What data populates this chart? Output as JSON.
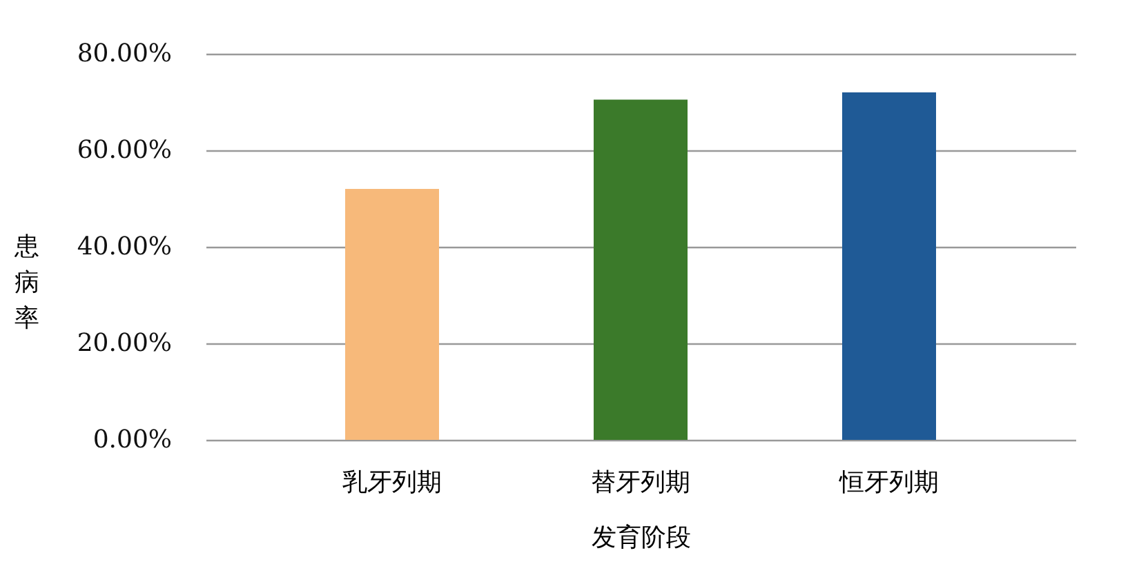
{
  "chart_data": {
    "type": "bar",
    "xlabel": "发育阶段",
    "ylabel": "患病率",
    "categories": [
      "乳牙列期",
      "替牙列期",
      "恒牙列期"
    ],
    "values": [
      52,
      70.5,
      72
    ],
    "colors": [
      "#f7b97a",
      "#3b7a2a",
      "#1f5a96"
    ],
    "ylim": [
      0,
      80
    ],
    "yticks": [
      {
        "value": 0,
        "label": "0.00%"
      },
      {
        "value": 20,
        "label": "20.00%"
      },
      {
        "value": 40,
        "label": "40.00%"
      },
      {
        "value": 60,
        "label": "60.00%"
      },
      {
        "value": 80,
        "label": "80.00%"
      }
    ],
    "grid": "y"
  }
}
